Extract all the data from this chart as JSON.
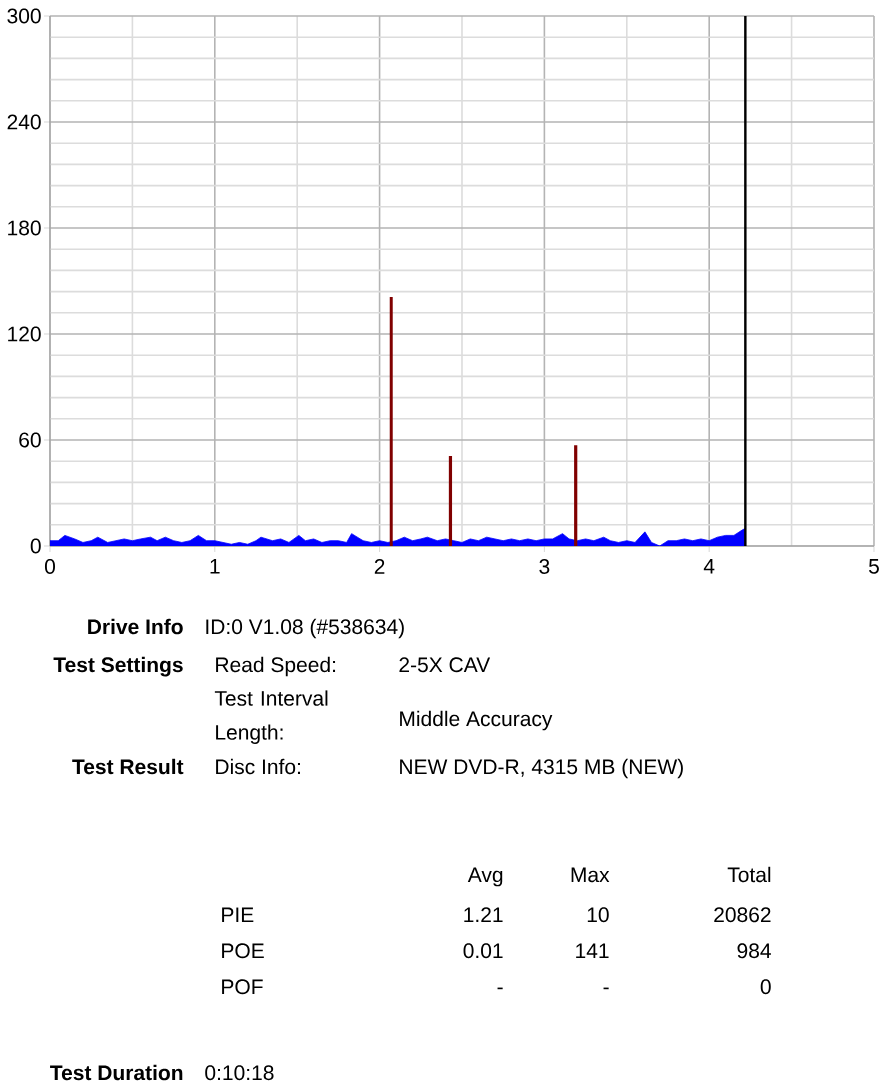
{
  "chart_data": {
    "type": "area",
    "xlim": [
      0,
      5
    ],
    "ylim": [
      0,
      300
    ],
    "xticks": [
      0,
      {
        "value": 0.5,
        "label": null
      },
      1,
      {
        "value": 1.5,
        "label": null
      },
      2,
      {
        "value": 2.5,
        "label": null
      },
      3,
      {
        "value": 3.5,
        "label": null
      },
      4,
      {
        "value": 4.5,
        "label": null
      },
      5
    ],
    "yticks": [
      0,
      {
        "value": 12,
        "label": null
      },
      {
        "value": 24,
        "label": null
      },
      {
        "value": 36,
        "label": null
      },
      {
        "value": 48,
        "label": null
      },
      60,
      {
        "value": 72,
        "label": null
      },
      {
        "value": 84,
        "label": null
      },
      {
        "value": 96,
        "label": null
      },
      {
        "value": 108,
        "label": null
      },
      120,
      {
        "value": 132,
        "label": null
      },
      {
        "value": 144,
        "label": null
      },
      {
        "value": 156,
        "label": null
      },
      {
        "value": 168,
        "label": null
      },
      180,
      {
        "value": 192,
        "label": null
      },
      {
        "value": 204,
        "label": null
      },
      {
        "value": 216,
        "label": null
      },
      {
        "value": 228,
        "label": null
      },
      240,
      {
        "value": 252,
        "label": null
      },
      {
        "value": 264,
        "label": null
      },
      {
        "value": 276,
        "label": null
      },
      {
        "value": 288,
        "label": null
      },
      300
    ],
    "grid": true,
    "series": [
      {
        "color": "#0000ff",
        "x": [
          0,
          0.05,
          0.09,
          0.15,
          0.2,
          0.25,
          0.29,
          0.35,
          0.4,
          0.45,
          0.5,
          0.55,
          0.61,
          0.65,
          0.7,
          0.75,
          0.8,
          0.85,
          0.9,
          0.95,
          1.0,
          1.05,
          1.1,
          1.15,
          1.2,
          1.25,
          1.28,
          1.35,
          1.4,
          1.45,
          1.51,
          1.55,
          1.6,
          1.65,
          1.7,
          1.75,
          1.8,
          1.83,
          1.9,
          1.95,
          2.0,
          2.05,
          2.1,
          2.15,
          2.2,
          2.25,
          2.29,
          2.35,
          2.4,
          2.45,
          2.5,
          2.55,
          2.6,
          2.65,
          2.7,
          2.75,
          2.8,
          2.85,
          2.9,
          2.95,
          3.0,
          3.05,
          3.11,
          3.15,
          3.2,
          3.25,
          3.3,
          3.36,
          3.4,
          3.45,
          3.5,
          3.55,
          3.61,
          3.65,
          3.7,
          3.75,
          3.8,
          3.85,
          3.9,
          3.95,
          4.0,
          4.05,
          4.1,
          4.15,
          4.2,
          4.22
        ],
        "values": [
          3,
          3,
          6,
          4,
          2,
          3,
          5,
          2,
          3,
          4,
          3,
          4,
          5,
          3,
          5,
          3,
          2,
          3,
          6,
          3,
          3,
          2,
          1,
          2,
          1,
          3,
          5,
          3,
          4,
          2,
          6,
          3,
          4,
          2,
          3,
          3,
          2,
          7,
          3,
          2,
          3,
          2,
          3,
          5,
          3,
          4,
          5,
          3,
          4,
          3,
          2,
          4,
          3,
          5,
          4,
          3,
          4,
          3,
          4,
          3,
          4,
          4,
          7,
          4,
          3,
          4,
          3,
          5,
          3,
          2,
          3,
          2,
          8,
          2,
          0,
          3,
          3,
          4,
          3,
          4,
          3,
          5,
          6,
          6,
          9,
          10
        ]
      },
      {
        "type": "bar",
        "color": "#800000",
        "x": [
          2.07,
          2.43,
          3.19
        ],
        "values": [
          141,
          51,
          57
        ]
      }
    ],
    "ref_lines": [
      {
        "axis": "x",
        "value": 4.22,
        "color": "#000000"
      }
    ],
    "annotations": [
      "Drive Info",
      "ID:0 V1.08 (#538634)",
      "Test Settings",
      "Read Speed:",
      "2-5X CAV",
      "Test Interval Length:",
      "Middle Accuracy",
      "Test Result",
      "Disc Info:",
      "NEW DVD-R, 4315 MB (NEW)",
      "Avg",
      "Max",
      "Total",
      "PIE",
      "1.21",
      "10",
      "20862",
      "POE",
      "0.01",
      "141",
      "984",
      "POF",
      "-",
      "-",
      "0",
      "Test Duration",
      "0:10:18"
    ]
  }
}
